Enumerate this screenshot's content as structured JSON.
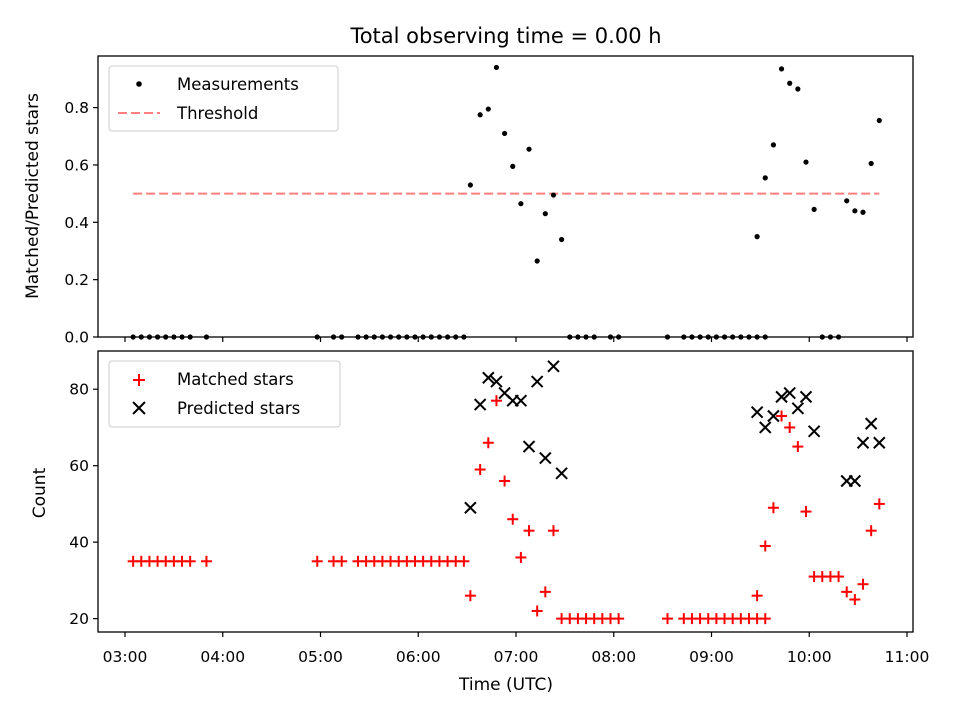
{
  "chart_data": [
    {
      "type": "scatter",
      "title": "Total observing time = 0.00 h",
      "xlabel": "",
      "ylabel": "Matched/Predicted stars",
      "ylim": [
        0,
        0.98
      ],
      "yticks": [
        0.0,
        0.2,
        0.4,
        0.6,
        0.8
      ],
      "ytick_labels": [
        "0.0",
        "0.2",
        "0.4",
        "0.6",
        "0.8"
      ],
      "legend_position": "top-left",
      "series": [
        {
          "name": "Measurements",
          "marker": "dot",
          "color": "#000000",
          "x": [
            "03:05",
            "03:10",
            "03:15",
            "03:20",
            "03:25",
            "03:30",
            "03:35",
            "03:40",
            "03:50",
            "04:58",
            "05:08",
            "05:13",
            "05:23",
            "05:28",
            "05:33",
            "05:38",
            "05:43",
            "05:48",
            "05:53",
            "05:58",
            "06:03",
            "06:08",
            "06:13",
            "06:18",
            "06:23",
            "06:28",
            "06:32",
            "06:38",
            "06:43",
            "06:48",
            "06:53",
            "06:58",
            "07:03",
            "07:08",
            "07:13",
            "07:18",
            "07:23",
            "07:28",
            "07:33",
            "07:38",
            "07:43",
            "07:48",
            "07:58",
            "08:03",
            "08:33",
            "08:43",
            "08:48",
            "08:53",
            "08:58",
            "09:03",
            "09:08",
            "09:13",
            "09:18",
            "09:23",
            "09:28",
            "09:33",
            "09:28",
            "09:33",
            "09:38",
            "09:43",
            "09:48",
            "09:53",
            "09:58",
            "10:03",
            "10:08",
            "10:13",
            "10:18",
            "10:23",
            "10:28",
            "10:33",
            "10:38",
            "10:43"
          ],
          "y": [
            0,
            0,
            0,
            0,
            0,
            0,
            0,
            0,
            0,
            0,
            0,
            0,
            0,
            0,
            0,
            0,
            0,
            0,
            0,
            0,
            0,
            0,
            0,
            0,
            0,
            0,
            0.53,
            0.775,
            0.795,
            0.94,
            0.71,
            0.595,
            0.465,
            0.655,
            0.265,
            0.43,
            0.495,
            0.34,
            0,
            0,
            0,
            0,
            0,
            0,
            0,
            0,
            0,
            0,
            0,
            0,
            0,
            0,
            0,
            0,
            0,
            0,
            0.35,
            0.555,
            0.67,
            0.935,
            0.885,
            0.865,
            0.61,
            0.445,
            0,
            0,
            0,
            0.475,
            0.44,
            0.435,
            0.605,
            0.755
          ]
        },
        {
          "name": "Threshold",
          "style": "dashed-line",
          "color": "#ff7f7f",
          "x": [
            "03:05",
            "10:43"
          ],
          "y": [
            0.5,
            0.5
          ]
        }
      ]
    },
    {
      "type": "scatter",
      "title": "",
      "xlabel": "Time (UTC)",
      "ylabel": "Count",
      "ylim": [
        16.5,
        90
      ],
      "yticks": [
        20,
        40,
        60,
        80
      ],
      "ytick_labels": [
        "20",
        "40",
        "60",
        "80"
      ],
      "xticks": [
        "03:00",
        "04:00",
        "05:00",
        "06:00",
        "07:00",
        "08:00",
        "09:00",
        "10:00",
        "11:00"
      ],
      "legend_position": "top-left",
      "series": [
        {
          "name": "Matched stars",
          "marker": "plus",
          "color": "#ff0000",
          "x": [
            "03:05",
            "03:10",
            "03:15",
            "03:20",
            "03:25",
            "03:30",
            "03:35",
            "03:40",
            "03:50",
            "04:58",
            "05:08",
            "05:13",
            "05:23",
            "05:28",
            "05:33",
            "05:38",
            "05:43",
            "05:48",
            "05:53",
            "05:58",
            "06:03",
            "06:08",
            "06:13",
            "06:18",
            "06:23",
            "06:28",
            "06:32",
            "06:38",
            "06:43",
            "06:48",
            "06:53",
            "06:58",
            "07:03",
            "07:08",
            "07:13",
            "07:18",
            "07:23",
            "07:28",
            "07:33",
            "07:38",
            "07:43",
            "07:48",
            "07:53",
            "07:58",
            "08:03",
            "08:33",
            "08:43",
            "08:48",
            "08:53",
            "08:58",
            "09:03",
            "09:08",
            "09:13",
            "09:18",
            "09:23",
            "09:28",
            "09:33",
            "09:28",
            "09:33",
            "09:38",
            "09:43",
            "09:48",
            "09:53",
            "09:58",
            "10:03",
            "10:08",
            "10:13",
            "10:18",
            "10:23",
            "10:28",
            "10:33",
            "10:38",
            "10:43"
          ],
          "y": [
            35,
            35,
            35,
            35,
            35,
            35,
            35,
            35,
            35,
            35,
            35,
            35,
            35,
            35,
            35,
            35,
            35,
            35,
            35,
            35,
            35,
            35,
            35,
            35,
            35,
            35,
            26,
            59,
            66,
            77,
            56,
            46,
            36,
            43,
            22,
            27,
            43,
            20,
            20,
            20,
            20,
            20,
            20,
            20,
            20,
            20,
            20,
            20,
            20,
            20,
            20,
            20,
            20,
            20,
            20,
            20,
            20,
            26,
            39,
            49,
            73,
            70,
            65,
            48,
            31,
            31,
            31,
            31,
            27,
            25,
            29,
            43,
            50
          ]
        },
        {
          "name": "Predicted stars",
          "marker": "x",
          "color": "#000000",
          "x": [
            "06:32",
            "06:38",
            "06:43",
            "06:48",
            "06:53",
            "06:58",
            "07:03",
            "07:08",
            "07:13",
            "07:18",
            "07:23",
            "07:28",
            "09:28",
            "09:33",
            "09:38",
            "09:43",
            "09:48",
            "09:53",
            "09:58",
            "10:03",
            "10:23",
            "10:28",
            "10:33",
            "10:38",
            "10:43"
          ],
          "y": [
            49,
            76,
            83,
            82,
            79,
            77,
            77,
            65,
            82,
            62,
            86,
            58,
            74,
            70,
            73,
            78,
            79,
            75,
            78,
            69,
            56,
            56,
            66,
            71,
            66
          ]
        }
      ]
    }
  ]
}
